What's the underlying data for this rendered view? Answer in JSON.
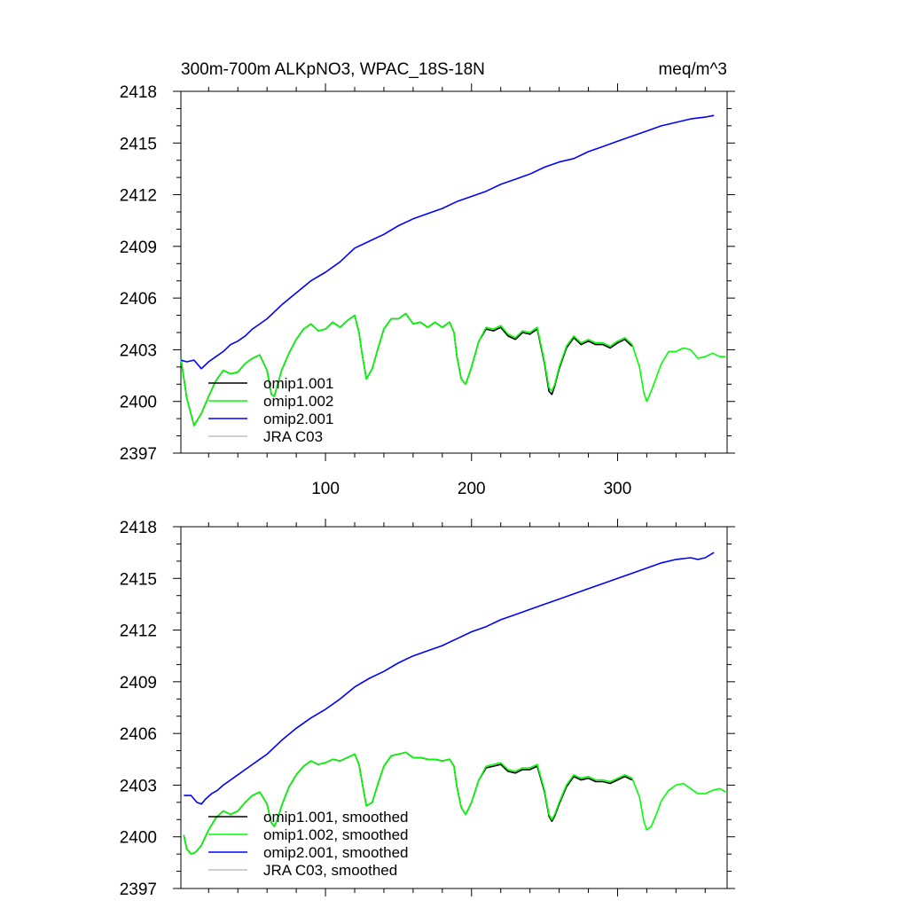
{
  "chart_data": [
    {
      "type": "line",
      "title": "300m-700m ALKpNO3, WPAC_18S-18N",
      "units": "meq/m^3",
      "xlim": [
        1,
        375
      ],
      "ylim": [
        2397,
        2418
      ],
      "xticks": [
        100,
        200,
        300
      ],
      "yticks": [
        2397,
        2400,
        2403,
        2406,
        2409,
        2412,
        2415,
        2418
      ],
      "show_xtick_labels": true,
      "legend": "bottom-left",
      "series": [
        {
          "name": "omip1.001",
          "color": "#000000",
          "x": [
            1,
            5,
            10,
            15,
            20,
            25,
            30,
            35,
            40,
            45,
            50,
            55,
            60,
            63,
            65,
            67,
            70,
            75,
            80,
            85,
            90,
            95,
            100,
            105,
            110,
            115,
            120,
            123,
            125,
            128,
            132,
            136,
            140,
            145,
            150,
            155,
            160,
            165,
            170,
            175,
            180,
            185,
            188,
            190,
            193,
            196,
            200,
            205,
            210,
            215,
            220,
            225,
            230,
            235,
            240,
            245,
            250,
            253,
            255,
            257,
            260,
            265,
            270,
            275,
            280,
            285,
            290,
            295,
            300,
            305,
            310
          ],
          "values": [
            2402.5,
            2400.2,
            2398.6,
            2399.3,
            2400.3,
            2401.2,
            2401.8,
            2401.6,
            2401.7,
            2402.2,
            2402.5,
            2402.7,
            2401.8,
            2400.4,
            2400.3,
            2400.9,
            2401.8,
            2402.8,
            2403.6,
            2404.2,
            2404.5,
            2404.1,
            2404.2,
            2404.6,
            2404.3,
            2404.7,
            2405.0,
            2404.0,
            2402.8,
            2401.3,
            2401.9,
            2403.1,
            2404.2,
            2404.8,
            2404.8,
            2405.1,
            2404.5,
            2404.6,
            2404.3,
            2404.6,
            2404.3,
            2404.6,
            2404.0,
            2402.6,
            2401.3,
            2401.0,
            2402.0,
            2403.5,
            2404.2,
            2404.1,
            2404.3,
            2403.8,
            2403.6,
            2404.0,
            2403.9,
            2404.2,
            2402.2,
            2400.6,
            2400.4,
            2400.9,
            2401.9,
            2403.1,
            2403.7,
            2403.3,
            2403.5,
            2403.3,
            2403.3,
            2403.1,
            2403.4,
            2403.6,
            2403.2
          ]
        },
        {
          "name": "omip1.002",
          "color": "#00ff00",
          "x": [
            1,
            5,
            10,
            15,
            20,
            25,
            30,
            35,
            40,
            45,
            50,
            55,
            60,
            63,
            65,
            67,
            70,
            75,
            80,
            85,
            90,
            95,
            100,
            105,
            110,
            115,
            120,
            123,
            125,
            128,
            132,
            136,
            140,
            145,
            150,
            155,
            160,
            165,
            170,
            175,
            180,
            185,
            188,
            190,
            193,
            196,
            200,
            205,
            210,
            215,
            220,
            225,
            230,
            235,
            240,
            245,
            250,
            253,
            255,
            257,
            260,
            265,
            270,
            275,
            280,
            285,
            290,
            295,
            300,
            305,
            310,
            315,
            318,
            320,
            323,
            327,
            330,
            335,
            340,
            345,
            350,
            355,
            360,
            365,
            370,
            374
          ],
          "values": [
            2402.5,
            2400.2,
            2398.6,
            2399.3,
            2400.3,
            2401.2,
            2401.8,
            2401.6,
            2401.7,
            2402.2,
            2402.5,
            2402.7,
            2401.8,
            2400.4,
            2400.3,
            2400.9,
            2401.8,
            2402.8,
            2403.6,
            2404.2,
            2404.5,
            2404.1,
            2404.2,
            2404.6,
            2404.3,
            2404.7,
            2405.0,
            2404.0,
            2402.8,
            2401.3,
            2401.9,
            2403.1,
            2404.2,
            2404.8,
            2404.8,
            2405.1,
            2404.5,
            2404.6,
            2404.3,
            2404.6,
            2404.3,
            2404.6,
            2404.0,
            2402.6,
            2401.3,
            2401.0,
            2402.0,
            2403.5,
            2404.3,
            2404.2,
            2404.4,
            2403.9,
            2403.7,
            2404.1,
            2404.0,
            2404.3,
            2402.3,
            2400.8,
            2400.6,
            2401.0,
            2402.0,
            2403.2,
            2403.8,
            2403.4,
            2403.6,
            2403.4,
            2403.4,
            2403.2,
            2403.5,
            2403.7,
            2403.3,
            2402.0,
            2400.5,
            2400.0,
            2400.6,
            2401.5,
            2402.2,
            2402.9,
            2402.9,
            2403.1,
            2403.0,
            2402.5,
            2402.6,
            2402.8,
            2402.6,
            2402.6
          ]
        },
        {
          "name": "omip2.001",
          "color": "#0000ff",
          "x": [
            1,
            5,
            10,
            15,
            20,
            25,
            30,
            35,
            40,
            45,
            50,
            60,
            70,
            80,
            90,
            100,
            110,
            120,
            130,
            140,
            150,
            160,
            170,
            180,
            190,
            200,
            210,
            220,
            230,
            240,
            250,
            260,
            270,
            280,
            290,
            300,
            310,
            320,
            330,
            340,
            350,
            360,
            366
          ],
          "values": [
            2402.4,
            2402.3,
            2402.4,
            2401.9,
            2402.3,
            2402.6,
            2402.9,
            2403.3,
            2403.5,
            2403.8,
            2404.2,
            2404.8,
            2405.6,
            2406.3,
            2407.0,
            2407.5,
            2408.1,
            2408.9,
            2409.3,
            2409.7,
            2410.2,
            2410.6,
            2410.9,
            2411.2,
            2411.6,
            2411.9,
            2412.2,
            2412.6,
            2412.9,
            2413.2,
            2413.6,
            2413.9,
            2414.1,
            2414.5,
            2414.8,
            2415.1,
            2415.4,
            2415.7,
            2416.0,
            2416.2,
            2416.4,
            2416.5,
            2416.6
          ]
        },
        {
          "name": "JRA C03",
          "color": "#c0c0c0",
          "x": [],
          "values": []
        }
      ]
    },
    {
      "type": "line",
      "title": "",
      "units": "",
      "xlim": [
        1,
        375
      ],
      "ylim": [
        2397,
        2418
      ],
      "xticks": [
        100,
        200,
        300
      ],
      "yticks": [
        2397,
        2400,
        2403,
        2406,
        2409,
        2412,
        2415,
        2418
      ],
      "show_xtick_labels": false,
      "legend": "bottom-left",
      "series": [
        {
          "name": "omip1.001, smoothed",
          "color": "#000000",
          "x": [
            3,
            5,
            8,
            11,
            15,
            20,
            25,
            30,
            35,
            40,
            45,
            50,
            55,
            60,
            63,
            65,
            67,
            70,
            75,
            80,
            85,
            90,
            95,
            100,
            105,
            110,
            115,
            120,
            123,
            125,
            128,
            132,
            136,
            140,
            145,
            150,
            155,
            160,
            165,
            170,
            175,
            180,
            185,
            188,
            190,
            193,
            196,
            200,
            205,
            210,
            215,
            220,
            225,
            230,
            235,
            240,
            245,
            250,
            253,
            255,
            257,
            260,
            265,
            270,
            275,
            280,
            285,
            290,
            295,
            300,
            305,
            310
          ],
          "values": [
            2400.1,
            2399.3,
            2399.0,
            2399.1,
            2399.5,
            2400.4,
            2401.1,
            2401.5,
            2401.3,
            2401.5,
            2402.0,
            2402.4,
            2402.6,
            2401.9,
            2400.8,
            2400.6,
            2401.0,
            2401.8,
            2402.9,
            2403.6,
            2404.1,
            2404.4,
            2404.2,
            2404.3,
            2404.5,
            2404.4,
            2404.6,
            2404.8,
            2404.2,
            2403.2,
            2401.8,
            2402.0,
            2403.1,
            2404.1,
            2404.7,
            2404.8,
            2404.9,
            2404.6,
            2404.6,
            2404.5,
            2404.5,
            2404.4,
            2404.5,
            2404.1,
            2402.9,
            2401.7,
            2401.3,
            2402.0,
            2403.3,
            2404.0,
            2404.1,
            2404.2,
            2403.8,
            2403.7,
            2403.9,
            2403.9,
            2404.1,
            2402.6,
            2401.2,
            2400.9,
            2401.2,
            2401.9,
            2402.9,
            2403.5,
            2403.3,
            2403.4,
            2403.2,
            2403.2,
            2403.1,
            2403.3,
            2403.5,
            2403.3
          ]
        },
        {
          "name": "omip1.002, smoothed",
          "color": "#00ff00",
          "x": [
            3,
            5,
            8,
            11,
            15,
            20,
            25,
            30,
            35,
            40,
            45,
            50,
            55,
            60,
            63,
            65,
            67,
            70,
            75,
            80,
            85,
            90,
            95,
            100,
            105,
            110,
            115,
            120,
            123,
            125,
            128,
            132,
            136,
            140,
            145,
            150,
            155,
            160,
            165,
            170,
            175,
            180,
            185,
            188,
            190,
            193,
            196,
            200,
            205,
            210,
            215,
            220,
            225,
            230,
            235,
            240,
            245,
            250,
            253,
            255,
            257,
            260,
            265,
            270,
            275,
            280,
            285,
            290,
            295,
            300,
            305,
            310,
            315,
            318,
            320,
            323,
            327,
            330,
            335,
            340,
            345,
            350,
            355,
            360,
            365,
            370,
            374
          ],
          "values": [
            2400.1,
            2399.3,
            2399.0,
            2399.1,
            2399.5,
            2400.4,
            2401.1,
            2401.5,
            2401.3,
            2401.5,
            2402.0,
            2402.4,
            2402.6,
            2401.9,
            2400.8,
            2400.6,
            2401.0,
            2401.8,
            2402.9,
            2403.6,
            2404.1,
            2404.4,
            2404.2,
            2404.3,
            2404.5,
            2404.4,
            2404.6,
            2404.8,
            2404.2,
            2403.2,
            2401.8,
            2402.0,
            2403.1,
            2404.1,
            2404.7,
            2404.8,
            2404.9,
            2404.6,
            2404.6,
            2404.5,
            2404.5,
            2404.4,
            2404.5,
            2404.1,
            2402.9,
            2401.7,
            2401.3,
            2402.0,
            2403.3,
            2404.1,
            2404.2,
            2404.3,
            2403.9,
            2403.8,
            2404.0,
            2404.0,
            2404.2,
            2402.7,
            2401.3,
            2401.0,
            2401.3,
            2402.0,
            2403.0,
            2403.6,
            2403.4,
            2403.5,
            2403.3,
            2403.3,
            2403.2,
            2403.4,
            2403.6,
            2403.4,
            2402.3,
            2400.9,
            2400.4,
            2400.6,
            2401.4,
            2402.1,
            2402.7,
            2403.0,
            2403.1,
            2402.8,
            2402.5,
            2402.5,
            2402.7,
            2402.8,
            2402.6
          ]
        },
        {
          "name": "omip2.001, smoothed",
          "color": "#0000ff",
          "x": [
            3,
            8,
            12,
            15,
            18,
            22,
            26,
            30,
            35,
            40,
            45,
            50,
            55,
            60,
            70,
            80,
            90,
            100,
            110,
            120,
            130,
            140,
            150,
            160,
            170,
            180,
            190,
            200,
            210,
            220,
            230,
            240,
            250,
            260,
            270,
            280,
            290,
            300,
            310,
            320,
            330,
            340,
            350,
            355,
            360,
            366
          ],
          "values": [
            2402.4,
            2402.4,
            2402.0,
            2401.9,
            2402.2,
            2402.5,
            2402.7,
            2403.0,
            2403.3,
            2403.6,
            2403.9,
            2404.2,
            2404.5,
            2404.8,
            2405.6,
            2406.3,
            2406.9,
            2407.4,
            2408.0,
            2408.7,
            2409.2,
            2409.6,
            2410.1,
            2410.5,
            2410.8,
            2411.1,
            2411.5,
            2411.9,
            2412.2,
            2412.6,
            2412.9,
            2413.2,
            2413.5,
            2413.8,
            2414.1,
            2414.4,
            2414.7,
            2415.0,
            2415.3,
            2415.6,
            2415.9,
            2416.1,
            2416.2,
            2416.1,
            2416.2,
            2416.5
          ]
        },
        {
          "name": "JRA C03, smoothed",
          "color": "#c0c0c0",
          "x": [],
          "values": []
        }
      ]
    }
  ]
}
